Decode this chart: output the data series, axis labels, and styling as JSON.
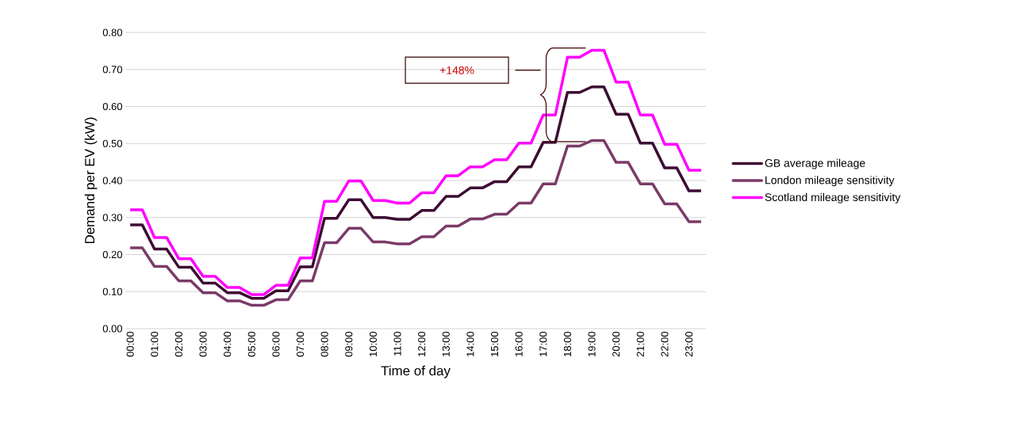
{
  "chart_data": {
    "type": "line",
    "xlabel": "Time of day",
    "ylabel": "Demand per EV (kW)",
    "categories": [
      "00:00",
      null,
      "01:00",
      null,
      "02:00",
      null,
      "03:00",
      null,
      "04:00",
      null,
      "05:00",
      null,
      "06:00",
      null,
      "07:00",
      null,
      "08:00",
      null,
      "09:00",
      null,
      "10:00",
      null,
      "11:00",
      null,
      "12:00",
      null,
      "13:00",
      null,
      "14:00",
      null,
      "15:00",
      null,
      "16:00",
      null,
      "17:00",
      null,
      "18:00",
      null,
      "19:00",
      null,
      "20:00",
      null,
      "21:00",
      null,
      "22:00",
      null,
      "23:00",
      null
    ],
    "series": [
      {
        "name": "GB average mileage",
        "color": "#3d0c33",
        "values": [
          0.28,
          0.28,
          0.215,
          0.215,
          0.166,
          0.166,
          0.123,
          0.123,
          0.097,
          0.097,
          0.082,
          0.082,
          0.102,
          0.102,
          0.167,
          0.167,
          0.298,
          0.298,
          0.348,
          0.348,
          0.3,
          0.3,
          0.295,
          0.295,
          0.319,
          0.319,
          0.357,
          0.357,
          0.38,
          0.38,
          0.397,
          0.397,
          0.437,
          0.437,
          0.503,
          0.503,
          0.638,
          0.638,
          0.653,
          0.653,
          0.579,
          0.579,
          0.501,
          0.501,
          0.434,
          0.434,
          0.372,
          0.372
        ]
      },
      {
        "name": "London mileage sensitivity",
        "color": "#7b3a68",
        "values": [
          0.218,
          0.218,
          0.168,
          0.168,
          0.129,
          0.129,
          0.097,
          0.097,
          0.075,
          0.075,
          0.063,
          0.063,
          0.078,
          0.078,
          0.129,
          0.129,
          0.232,
          0.232,
          0.271,
          0.271,
          0.234,
          0.234,
          0.229,
          0.229,
          0.248,
          0.248,
          0.277,
          0.277,
          0.296,
          0.296,
          0.309,
          0.309,
          0.339,
          0.339,
          0.391,
          0.391,
          0.493,
          0.493,
          0.508,
          0.508,
          0.449,
          0.449,
          0.391,
          0.391,
          0.337,
          0.337,
          0.289,
          0.289
        ]
      },
      {
        "name": "Scotland mileage sensitivity",
        "color": "#ff00ff",
        "values": [
          0.321,
          0.321,
          0.246,
          0.246,
          0.189,
          0.189,
          0.141,
          0.141,
          0.111,
          0.111,
          0.092,
          0.092,
          0.117,
          0.117,
          0.191,
          0.191,
          0.344,
          0.344,
          0.399,
          0.399,
          0.346,
          0.346,
          0.339,
          0.339,
          0.367,
          0.367,
          0.413,
          0.413,
          0.437,
          0.437,
          0.456,
          0.456,
          0.501,
          0.501,
          0.577,
          0.577,
          0.733,
          0.733,
          0.752,
          0.752,
          0.666,
          0.666,
          0.577,
          0.577,
          0.498,
          0.498,
          0.428,
          0.428
        ]
      }
    ],
    "ylim": [
      0,
      0.8
    ],
    "yticks": [
      {
        "value": 0,
        "label": "0.00"
      },
      {
        "value": 0.1,
        "label": "0.10"
      },
      {
        "value": 0.2,
        "label": "0.20"
      },
      {
        "value": 0.3,
        "label": "0.30"
      },
      {
        "value": 0.4,
        "label": "0.40"
      },
      {
        "value": 0.5,
        "label": "0.50"
      },
      {
        "value": 0.6,
        "label": "0.60"
      },
      {
        "value": 0.7,
        "label": "0.70"
      },
      {
        "value": 0.8,
        "label": "0.80"
      }
    ],
    "grid": "y",
    "legend": "right",
    "marker": "none",
    "line_style": "solid",
    "annotations": [
      "+148%"
    ]
  }
}
